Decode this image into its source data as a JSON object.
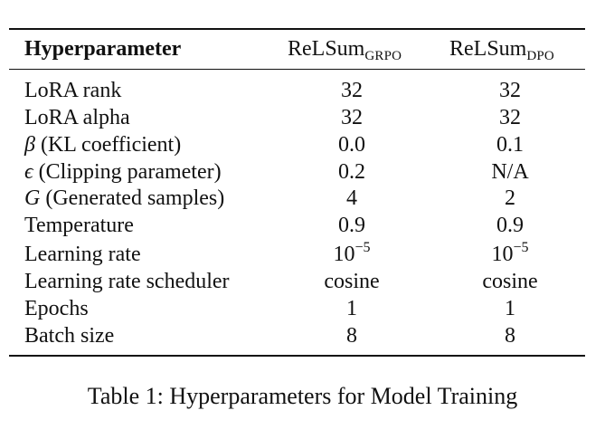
{
  "table": {
    "header": {
      "param": "Hyperparameter",
      "col1_main": "ReLSum",
      "col1_sub": "GRPO",
      "col2_main": "ReLSum",
      "col2_sub": "DPO"
    },
    "rows": [
      {
        "symbol": "",
        "label": "LoRA rank",
        "v1": "32",
        "v2": "32"
      },
      {
        "symbol": "",
        "label": "LoRA alpha",
        "v1": "32",
        "v2": "32"
      },
      {
        "symbol": "β",
        "label": " (KL coefficient)",
        "v1": "0.0",
        "v2": "0.1"
      },
      {
        "symbol": "ϵ",
        "label": " (Clipping parameter)",
        "v1": "0.2",
        "v2": "N/A"
      },
      {
        "symbol": "G",
        "label": " (Generated samples)",
        "v1": "4",
        "v2": "2"
      },
      {
        "symbol": "",
        "label": "Temperature",
        "v1": "0.9",
        "v2": "0.9"
      },
      {
        "symbol": "",
        "label": "Learning rate",
        "v1_base": "10",
        "v1_exp": "−5",
        "v2_base": "10",
        "v2_exp": "−5"
      },
      {
        "symbol": "",
        "label": "Learning rate scheduler",
        "v1": "cosine",
        "v2": "cosine"
      },
      {
        "symbol": "",
        "label": "Epochs",
        "v1": "1",
        "v2": "1"
      },
      {
        "symbol": "",
        "label": "Batch size",
        "v1": "8",
        "v2": "8"
      }
    ]
  },
  "caption": "Table 1: Hyperparameters for Model Training"
}
